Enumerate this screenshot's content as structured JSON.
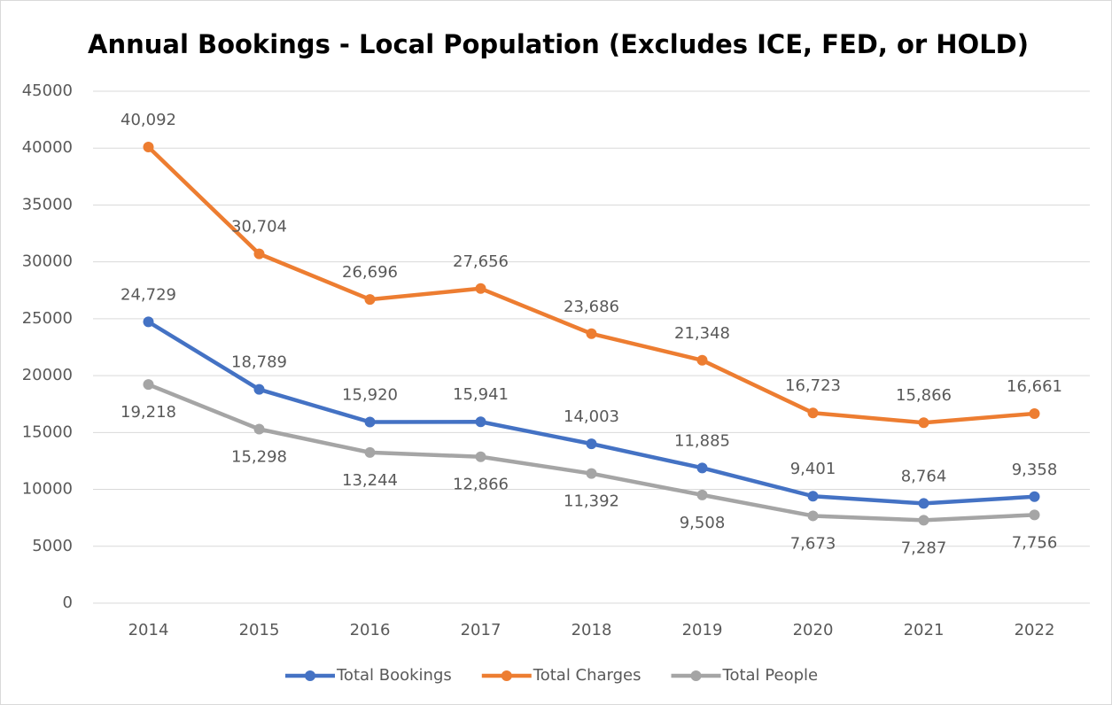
{
  "chart_data": {
    "type": "line",
    "title": "Annual Bookings - Local Population (Excludes ICE, FED, or HOLD)",
    "categories": [
      "2014",
      "2015",
      "2016",
      "2017",
      "2018",
      "2019",
      "2020",
      "2021",
      "2022"
    ],
    "series": [
      {
        "name": "Total Bookings",
        "color": "#4472c4",
        "values": [
          24729,
          18789,
          15920,
          15941,
          14003,
          11885,
          9401,
          8764,
          9358
        ],
        "value_labels": [
          "24,729",
          "18,789",
          "15,920",
          "15,941",
          "14,003",
          "11,885",
          "9,401",
          "8,764",
          "9,358"
        ]
      },
      {
        "name": "Total Charges",
        "color": "#ed7d31",
        "values": [
          40092,
          30704,
          26696,
          27656,
          23686,
          21348,
          16723,
          15866,
          16661
        ],
        "value_labels": [
          "40,092",
          "30,704",
          "26,696",
          "27,656",
          "23,686",
          "21,348",
          "16,723",
          "15,866",
          "16,661"
        ]
      },
      {
        "name": "Total People",
        "color": "#a5a5a5",
        "values": [
          19218,
          15298,
          13244,
          12866,
          11392,
          9508,
          7673,
          7287,
          7756
        ],
        "value_labels": [
          "19,218",
          "15,298",
          "13,244",
          "12,866",
          "11,392",
          "9,508",
          "7,673",
          "7,287",
          "7,756"
        ]
      }
    ],
    "ylim": [
      0,
      45000
    ],
    "yticks": [
      0,
      5000,
      10000,
      15000,
      20000,
      25000,
      30000,
      35000,
      40000,
      45000
    ],
    "grid": true,
    "legend": "bottom"
  }
}
